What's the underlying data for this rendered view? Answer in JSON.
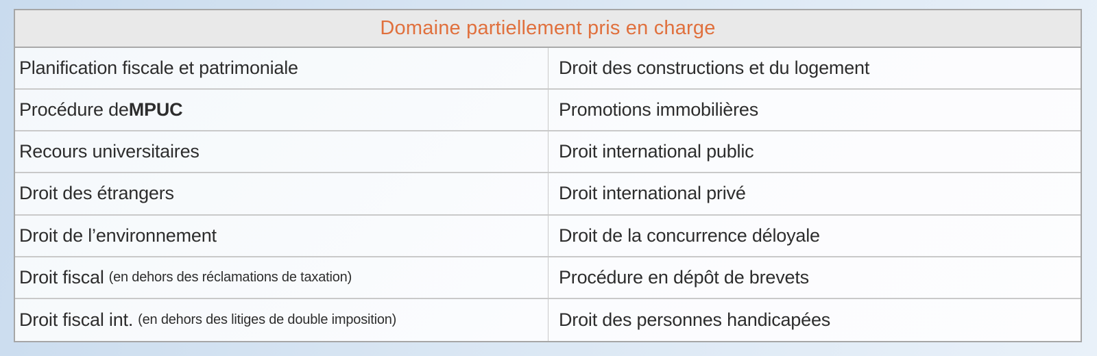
{
  "colors": {
    "header_text": "#e0703d",
    "header_bg": "#e9e9e9",
    "table_border": "#a6a6a6",
    "row_separator": "#c9c9c9",
    "cell_text": "#2d2d2d",
    "page_bg_start": "#c9dbee",
    "page_bg_end": "#e9f1f9"
  },
  "table": {
    "header": {
      "title": "Domaine partiellement pris en charge"
    },
    "rows": [
      {
        "left": {
          "main": "Planification fiscale et patrimoniale"
        },
        "right": {
          "main": "Droit des constructions et du logement"
        }
      },
      {
        "left": {
          "main": "Procédure de ",
          "strong": "MPUC"
        },
        "right": {
          "main": "Promotions immobilières"
        }
      },
      {
        "left": {
          "main": "Recours universitaires"
        },
        "right": {
          "main": "Droit international public"
        }
      },
      {
        "left": {
          "main": "Droit des étrangers"
        },
        "right": {
          "main": "Droit international privé"
        }
      },
      {
        "left": {
          "main": "Droit de l’environnement"
        },
        "right": {
          "main": "Droit de la concurrence déloyale"
        }
      },
      {
        "left": {
          "main": "Droit fiscal",
          "note": "(en dehors des réclamations de taxation)"
        },
        "right": {
          "main": "Procédure en dépôt de brevets"
        }
      },
      {
        "left": {
          "main": "Droit fiscal int.",
          "note": "(en dehors des litiges de double imposition)"
        },
        "right": {
          "main": "Droit des personnes handicapées"
        }
      }
    ]
  }
}
